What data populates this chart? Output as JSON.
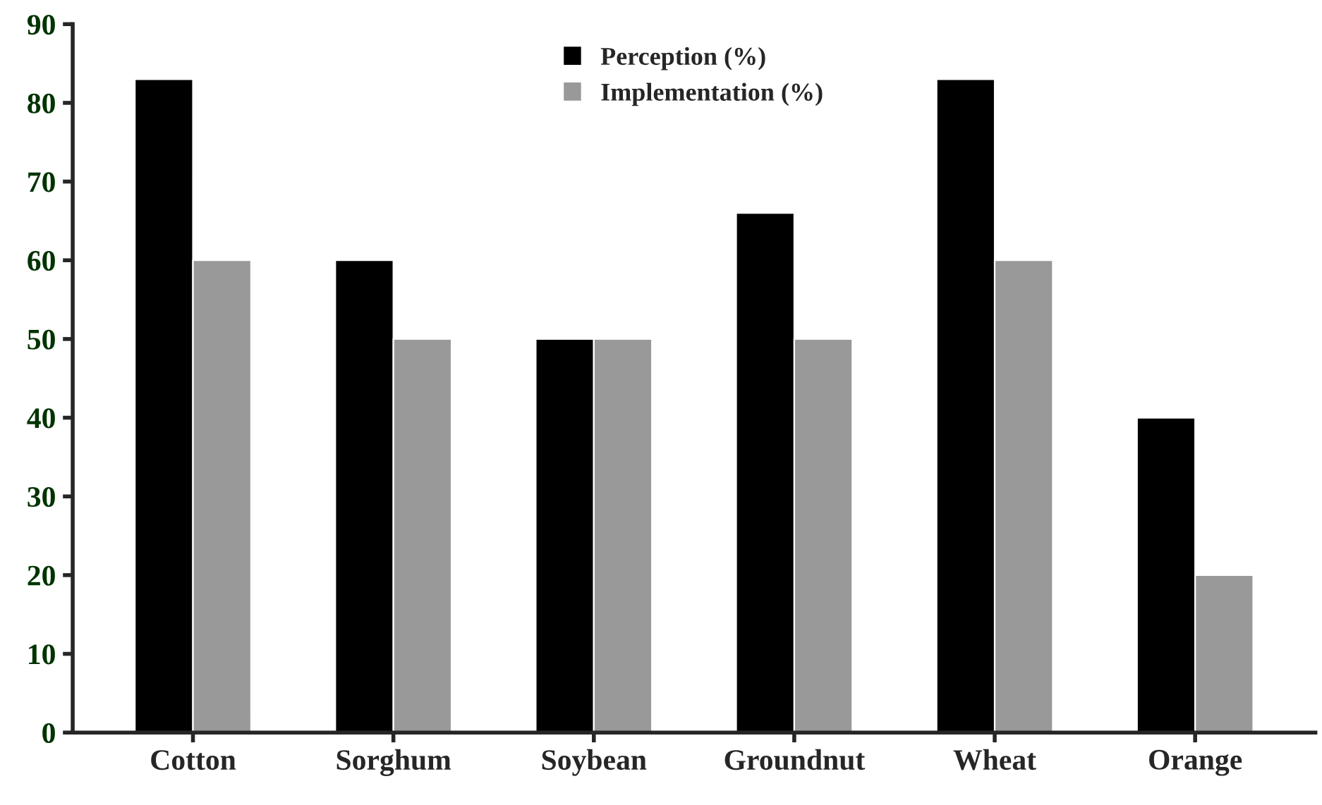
{
  "chart_data": {
    "type": "bar",
    "categories": [
      "Cotton",
      "Sorghum",
      "Soybean",
      "Groundnut",
      "Wheat",
      "Orange"
    ],
    "series": [
      {
        "name": "Perception (%)",
        "color": "#000000",
        "values": [
          83,
          60,
          50,
          66,
          83,
          40
        ]
      },
      {
        "name": "Implementation (%)",
        "color": "#999999",
        "values": [
          60,
          50,
          50,
          50,
          60,
          20
        ]
      }
    ],
    "ylim": [
      0,
      90
    ],
    "yticks": [
      0,
      10,
      20,
      30,
      40,
      50,
      60,
      70,
      80,
      90
    ],
    "grid": false,
    "legend": "top"
  }
}
